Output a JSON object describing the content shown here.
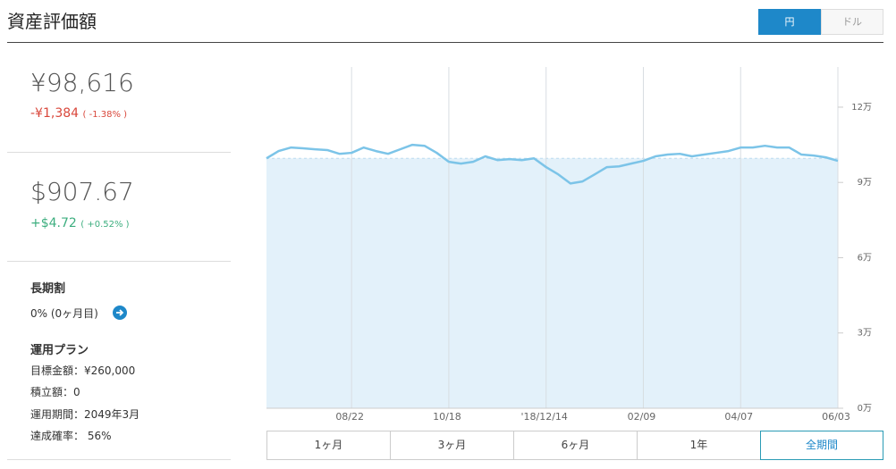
{
  "header": {
    "title": "資産評価額",
    "currency_toggle": [
      "円",
      "ドル"
    ],
    "active_currency": 0
  },
  "summary": {
    "jpy": {
      "value": "¥98,616",
      "change": "-¥1,384",
      "change_pct": "( -1.38% )"
    },
    "usd": {
      "value": "$907.67",
      "change": "+$4.72",
      "change_pct": "( +0.52% )"
    }
  },
  "long_term": {
    "title": "長期割",
    "text": "0% (0ヶ月目)"
  },
  "plan": {
    "title": "運用プラン",
    "items": [
      "目標金額：¥260,000",
      "積立額：0",
      "運用期間：2049年3月",
      "達成確率： 56%"
    ]
  },
  "chart_data": {
    "type": "line",
    "categories": [
      null,
      null,
      null,
      null,
      null,
      null,
      null,
      "08/22",
      null,
      null,
      null,
      null,
      null,
      null,
      null,
      "10/18",
      null,
      null,
      null,
      null,
      null,
      null,
      null,
      "'18/12/14",
      null,
      null,
      null,
      null,
      null,
      null,
      null,
      "02/09",
      null,
      null,
      null,
      null,
      null,
      null,
      null,
      "04/07",
      null,
      null,
      null,
      null,
      null,
      null,
      null,
      "06/03"
    ],
    "series": [
      {
        "name": "資産評価額",
        "color": "#7cc4e8",
        "values": [
          99600,
          102500,
          103900,
          103600,
          103200,
          102900,
          101400,
          101800,
          103900,
          102500,
          101400,
          103200,
          105000,
          104600,
          101800,
          98200,
          97500,
          98200,
          100400,
          98900,
          99300,
          98900,
          99600,
          96100,
          93200,
          89600,
          90400,
          93200,
          96100,
          96400,
          97500,
          98600,
          100400,
          101100,
          101400,
          100400,
          101100,
          101800,
          102500,
          103900,
          103900,
          104600,
          103900,
          103900,
          101100,
          100700,
          100000,
          98600
        ]
      }
    ],
    "fill_color": "#e3f1fa",
    "ylim": [
      0,
      136000
    ],
    "yticks": [
      {
        "value": 0,
        "label": "0万"
      },
      {
        "value": 30000,
        "label": "3万"
      },
      {
        "value": 60000,
        "label": "6万"
      },
      {
        "value": 90000,
        "label": "9万"
      },
      {
        "value": 120000,
        "label": "12万"
      }
    ]
  },
  "periods": {
    "buttons": [
      "1ヶ月",
      "3ヶ月",
      "6ヶ月",
      "1年",
      "全期間"
    ],
    "active": 4
  }
}
